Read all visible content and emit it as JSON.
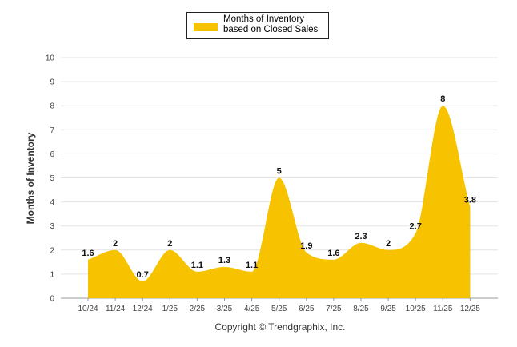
{
  "chart_data": {
    "type": "area",
    "legend": "Months of Inventory based on Closed Sales",
    "legend_position": "top-center",
    "ylabel": "Months of Inventory",
    "xlabel": "",
    "categories": [
      "10/24",
      "11/24",
      "12/24",
      "1/25",
      "2/25",
      "3/25",
      "4/25",
      "5/25",
      "6/25",
      "7/25",
      "8/25",
      "9/25",
      "10/25",
      "11/25",
      "12/25"
    ],
    "values": [
      1.6,
      2,
      0.7,
      2,
      1.1,
      1.3,
      1.1,
      5,
      1.9,
      1.6,
      2.3,
      2,
      2.7,
      8,
      3.8
    ],
    "value_labels": [
      "1.6",
      "2",
      "0.7",
      "2",
      "1.1",
      "1.3",
      "1.1",
      "5",
      "1.9",
      "1.6",
      "2.3",
      "2",
      "2.7",
      "8",
      "3.8"
    ],
    "ylim": [
      0,
      10
    ],
    "yticks": [
      "0",
      "1",
      "2",
      "3",
      "4",
      "5",
      "6",
      "7",
      "8",
      "9",
      "10"
    ],
    "grid": true,
    "color": "#F7C200"
  },
  "footer": {
    "copyright": "Copyright © Trendgraphix, Inc."
  }
}
